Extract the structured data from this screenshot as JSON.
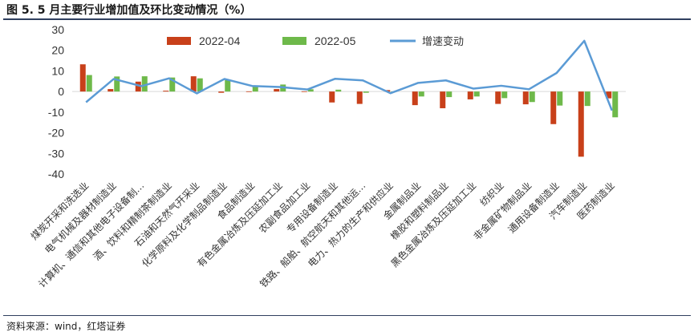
{
  "title": "图 5. 5 月主要行业增加值及环比变动情况（%）",
  "source": "资料来源：wind，红塔证券",
  "chart_data": {
    "type": "bar",
    "categories": [
      "煤炭开采和洗选业",
      "电气机械及器材制造业",
      "计算机、通信和其他电子设备制…",
      "酒、饮料和精制茶制造业",
      "石油和天然气开采业",
      "化学原料及化学制品制造业",
      "食品制造业",
      "有色金属冶炼及压延加工业",
      "农副食品加工业",
      "专用设备制造业",
      "铁路、船舶、航空航天和其他运…",
      "电力、热力的生产和供应业",
      "金属制品业",
      "橡胶和塑料制品业",
      "黑色金属冶炼及压延加工业",
      "纺织业",
      "非金属矿物制品业",
      "通用设备制造业",
      "汽车制造业",
      "医药制造业"
    ],
    "series": [
      {
        "name": "2022-04",
        "type": "bar",
        "color": "#c8401a",
        "values": [
          13.2,
          1.2,
          4.8,
          0.4,
          7.4,
          -0.6,
          0.1,
          1.2,
          0.1,
          -5.3,
          -6.0,
          0.7,
          -6.6,
          -8.1,
          -3.8,
          -6.0,
          -6.2,
          -15.8,
          -31.6,
          -3.3
        ]
      },
      {
        "name": "2022-05",
        "type": "bar",
        "color": "#6eb94a",
        "values": [
          8.0,
          7.3,
          7.4,
          6.8,
          6.4,
          5.5,
          2.8,
          3.4,
          1.1,
          0.9,
          -0.6,
          -0.1,
          -2.4,
          -2.7,
          -2.4,
          -3.2,
          -5.1,
          -6.8,
          -7.0,
          -12.5
        ]
      },
      {
        "name": "增速变动",
        "type": "line",
        "color": "#5b9bd5",
        "values": [
          -5.2,
          6.1,
          2.6,
          6.4,
          -0.9,
          6.1,
          2.7,
          2.2,
          1.0,
          6.2,
          5.4,
          -0.8,
          4.2,
          5.4,
          1.4,
          2.8,
          1.1,
          9.0,
          24.6,
          -9.2
        ]
      }
    ],
    "ylim": [
      -40,
      30
    ],
    "yticks": [
      -40,
      -30,
      -20,
      -10,
      0,
      10,
      20,
      30
    ],
    "legend": "top",
    "grid": false
  }
}
